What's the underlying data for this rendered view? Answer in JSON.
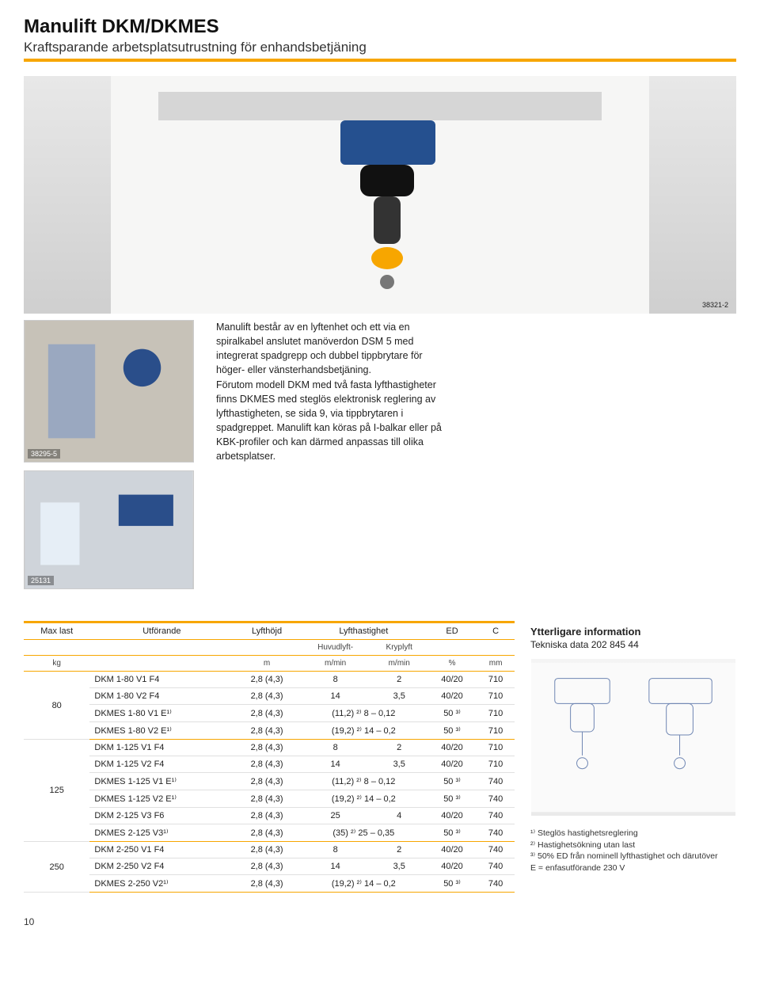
{
  "title": "Manulift DKM/DKMES",
  "subtitle": "Kraftsparande arbetsplatsutrustning för enhandsbetjäning",
  "image_ids": {
    "hero": "38321-2",
    "left1": "38295-5",
    "left2": "25131"
  },
  "body_text": "Manulift består av en lyftenhet och ett via en spiralkabel anslutet manöverdon DSM 5 med integrerat spadgrepp och dubbel tippbrytare för höger- eller vänsterhandsbetjäning.\nFörutom modell DKM med två fasta lyfthastigheter finns DKMES med steglös elektronisk reglering av lyfthastigheten, se sida 9, via tippbrytaren i spadgreppet. Manulift kan köras på I-balkar eller på KBK-profiler och kan därmed anpassas till olika arbetsplatser.",
  "table": {
    "headers": [
      "Max last",
      "Utförande",
      "Lyfthöjd",
      "Lyfthastighet",
      "",
      "ED",
      "C"
    ],
    "subheaders": [
      "",
      "",
      "",
      "Huvudlyft-",
      "Kryplyft",
      "",
      ""
    ],
    "units": [
      "kg",
      "",
      "m",
      "m/min",
      "m/min",
      "%",
      "mm"
    ],
    "groups": [
      {
        "maxlast": "80",
        "rows": [
          [
            "DKM 1-80 V1 F4",
            "2,8 (4,3)",
            "8",
            "2",
            "40/20",
            "710"
          ],
          [
            "DKM 1-80 V2 F4",
            "2,8 (4,3)",
            "14",
            "3,5",
            "40/20",
            "710"
          ],
          [
            "DKMES 1-80 V1 E¹⁾",
            "2,8 (4,3)",
            "(11,2) ²⁾ 8 – 0,12",
            "",
            "50 ³⁾",
            "710"
          ],
          [
            "DKMES 1-80 V2 E¹⁾",
            "2,8 (4,3)",
            "(19,2) ²⁾ 14 – 0,2",
            "",
            "50 ³⁾",
            "710"
          ]
        ]
      },
      {
        "maxlast": "125",
        "rows": [
          [
            "DKM 1-125 V1 F4",
            "2,8 (4,3)",
            "8",
            "2",
            "40/20",
            "710"
          ],
          [
            "DKM 1-125 V2 F4",
            "2,8 (4,3)",
            "14",
            "3,5",
            "40/20",
            "710"
          ],
          [
            "DKMES 1-125 V1 E¹⁾",
            "2,8 (4,3)",
            "(11,2) ²⁾ 8 – 0,12",
            "",
            "50 ³⁾",
            "740"
          ],
          [
            "DKMES 1-125 V2 E¹⁾",
            "2,8 (4,3)",
            "(19,2) ²⁾ 14 – 0,2",
            "",
            "50 ³⁾",
            "740"
          ],
          [
            "DKM 2-125 V3 F6",
            "2,8 (4,3)",
            "25",
            "4",
            "40/20",
            "740"
          ],
          [
            "DKMES 2-125 V3¹⁾",
            "2,8 (4,3)",
            "(35) ²⁾ 25 – 0,35",
            "",
            "50 ³⁾",
            "740"
          ]
        ]
      },
      {
        "maxlast": "250",
        "rows": [
          [
            "DKM 2-250 V1 F4",
            "2,8 (4,3)",
            "8",
            "2",
            "40/20",
            "740"
          ],
          [
            "DKM 2-250 V2 F4",
            "2,8 (4,3)",
            "14",
            "3,5",
            "40/20",
            "740"
          ],
          [
            "DKMES 2-250 V2¹⁾",
            "2,8 (4,3)",
            "(19,2) ²⁾ 14 – 0,2",
            "",
            "50 ³⁾",
            "740"
          ]
        ]
      }
    ]
  },
  "side": {
    "heading": "Ytterligare information",
    "subline": "Tekniska data 202 845 44",
    "footnotes": [
      "¹⁾ Steglös hastighetsreglering",
      "²⁾ Hastighetsökning utan last",
      "³⁾ 50% ED från nominell lyfthastighet och därutöver",
      "E = enfasutförande 230 V"
    ]
  },
  "page_number": "10",
  "colors": {
    "accent": "#f7a600",
    "text": "#222222",
    "bg": "#ffffff"
  }
}
